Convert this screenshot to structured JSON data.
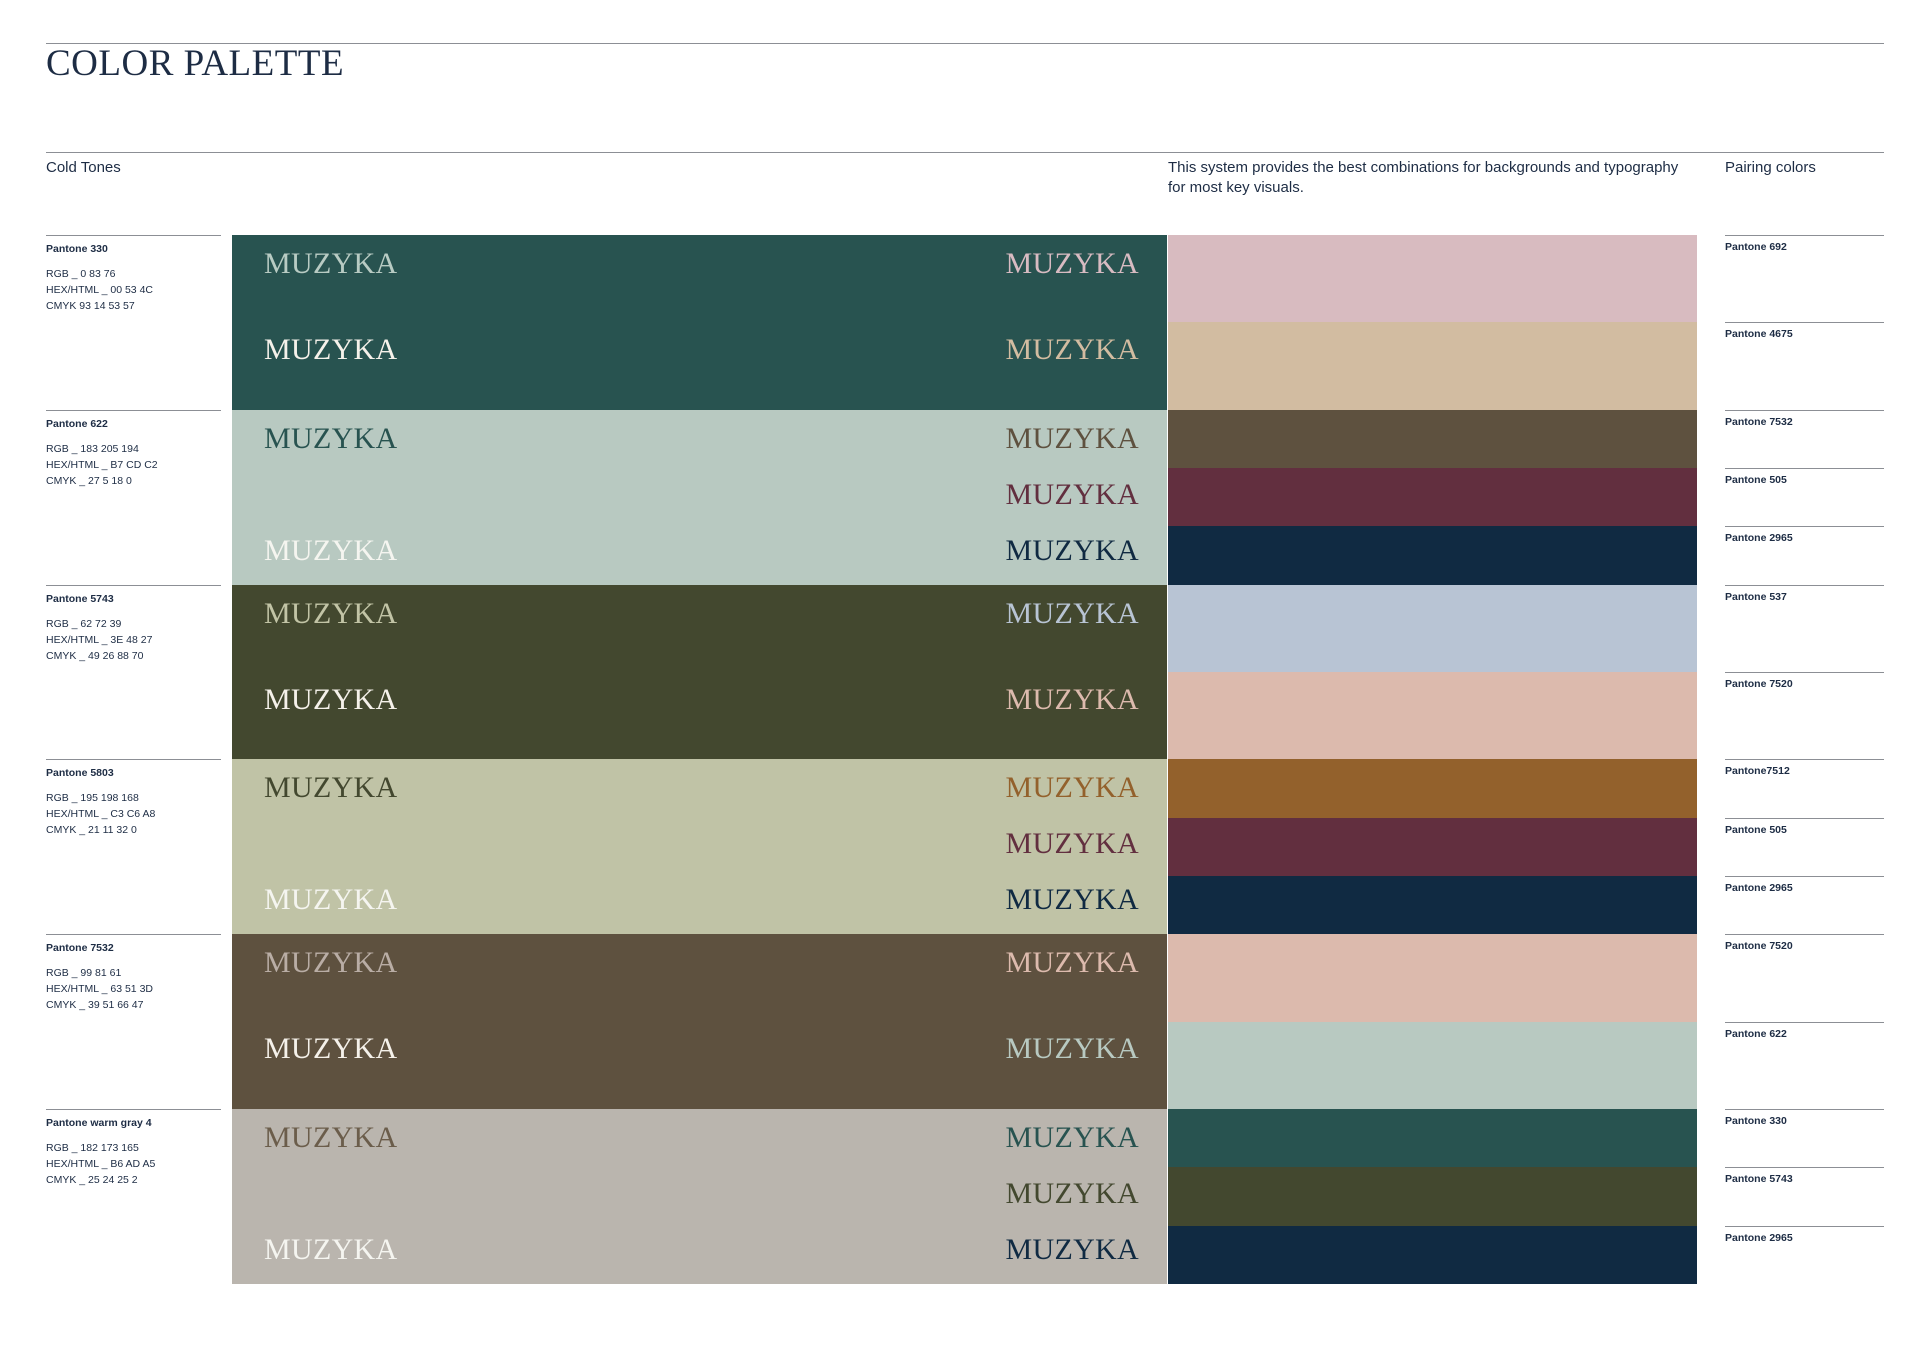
{
  "title": "COLOR PALETTE",
  "section_label": "Cold Tones",
  "system_note": "This system provides the best combinations for backgrounds and typography for most key visuals.",
  "pairing_header": "Pairing colors",
  "word": "MUZYKA",
  "colors": [
    {
      "name": "Pantone 330",
      "rgb": "RGB _ 0 83 76",
      "hex": "HEX/HTML _ 00 53 4C",
      "cmyk": "CMYK 93 14 53 57",
      "bg": "#285350",
      "words": [
        {
          "l": "#b8cbc3",
          "r": "#d8bbc2"
        },
        {
          "l": "#f5f1ea",
          "r": "#d2bca1"
        }
      ],
      "pairings": [
        {
          "name": "Pantone 692",
          "color": "#d8bbc0"
        },
        {
          "name": "Pantone 4675",
          "color": "#d2bca1"
        }
      ]
    },
    {
      "name": "Pantone 622",
      "rgb": "RGB _ 183 205 194",
      "hex": "HEX/HTML _ B7 CD C2",
      "cmyk": "CMYK _ 27 5 18 0",
      "bg": "#b8c9c1",
      "words": [
        {
          "l": "#285350",
          "r": "#5e513f"
        },
        {
          "l": "",
          "r": "#622f3f"
        },
        {
          "l": "#f5f5f0",
          "r": "#102a42"
        }
      ],
      "pairings": [
        {
          "name": "Pantone 7532",
          "color": "#5e513f"
        },
        {
          "name": "Pantone 505",
          "color": "#622f3f"
        },
        {
          "name": "Pantone 2965",
          "color": "#102a42"
        }
      ]
    },
    {
      "name": "Pantone 5743",
      "rgb": "RGB _ 62 72 39",
      "hex": "HEX/HTML _ 3E 48 27",
      "cmyk": "CMYK _ 49 26 88 70",
      "bg": "#43482f",
      "words": [
        {
          "l": "#c2c4a6",
          "r": "#b8c4d4"
        },
        {
          "l": "#f5f1ea",
          "r": "#dcbaad"
        }
      ],
      "pairings": [
        {
          "name": "Pantone 537",
          "color": "#b8c4d4"
        },
        {
          "name": "Pantone 7520",
          "color": "#dcbaad"
        }
      ]
    },
    {
      "name": "Pantone 5803",
      "rgb": "RGB _ 195 198 168",
      "hex": "HEX/HTML _ C3 C6 A8",
      "cmyk": "CMYK _ 21 11 32 0",
      "bg": "#c0c3a6",
      "words": [
        {
          "l": "#43482f",
          "r": "#93612c"
        },
        {
          "l": "",
          "r": "#622f3f"
        },
        {
          "l": "#f5f5f0",
          "r": "#102a42"
        }
      ],
      "pairings": [
        {
          "name": "Pantone7512",
          "color": "#93612c"
        },
        {
          "name": "Pantone 505",
          "color": "#622f3f"
        },
        {
          "name": "Pantone 2965",
          "color": "#102a42"
        }
      ]
    },
    {
      "name": "Pantone 7532",
      "rgb": "RGB _ 99 81 61",
      "hex": "HEX/HTML _ 63 51 3D",
      "cmyk": "CMYK _ 39 51 66 47",
      "bg": "#5e513f",
      "words": [
        {
          "l": "#b9ada5",
          "r": "#dcbaad"
        },
        {
          "l": "#f5f1ea",
          "r": "#b8c9c1"
        }
      ],
      "pairings": [
        {
          "name": "Pantone 7520",
          "color": "#dcbaad"
        },
        {
          "name": "Pantone 622",
          "color": "#b8c9c1"
        }
      ]
    },
    {
      "name": "Pantone warm gray 4",
      "rgb": "RGB _ 182 173 165",
      "hex": "HEX/HTML _ B6 AD A5",
      "cmyk": "CMYK _ 25 24 25 2",
      "bg": "#bab5ae",
      "words": [
        {
          "l": "#6b5d4b",
          "r": "#285350"
        },
        {
          "l": "",
          "r": "#43482f"
        },
        {
          "l": "#f5f5f0",
          "r": "#102a42"
        }
      ],
      "pairings": [
        {
          "name": "Pantone 330",
          "color": "#285350"
        },
        {
          "name": "Pantone 5743",
          "color": "#43482f"
        },
        {
          "name": "Pantone 2965",
          "color": "#102a42"
        }
      ]
    }
  ]
}
